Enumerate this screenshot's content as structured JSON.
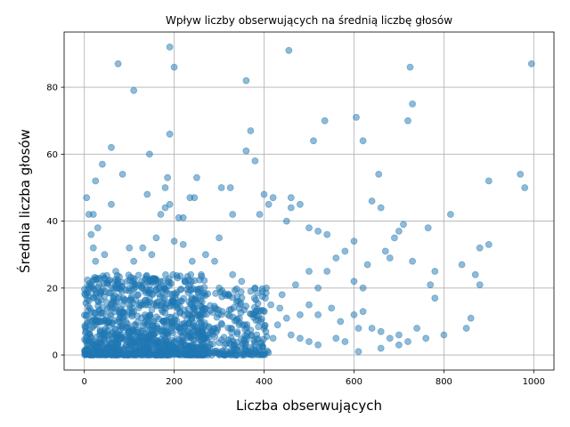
{
  "chart_data": {
    "type": "scatter",
    "title": "Wpływ liczby obserwujących na średnią liczbę głosów",
    "xlabel": "Liczba obserwujących",
    "ylabel": "Średnia liczba głosów",
    "xlim": [
      -45,
      1045
    ],
    "ylim": [
      -4.5,
      96.5
    ],
    "xticks": [
      0,
      200,
      400,
      600,
      800,
      1000
    ],
    "yticks": [
      0,
      20,
      40,
      60,
      80
    ],
    "grid": true,
    "point_color": "#1f77b4",
    "point_alpha": 0.5,
    "series": [
      {
        "points": [
          [
            75,
            87
          ],
          [
            190,
            92
          ],
          [
            200,
            86
          ],
          [
            110,
            79
          ],
          [
            455,
            91
          ],
          [
            360,
            82
          ],
          [
            725,
            86
          ],
          [
            995,
            87
          ],
          [
            730,
            75
          ],
          [
            190,
            66
          ],
          [
            535,
            70
          ],
          [
            605,
            71
          ],
          [
            620,
            64
          ],
          [
            370,
            67
          ],
          [
            60,
            62
          ],
          [
            145,
            60
          ],
          [
            360,
            61
          ],
          [
            380,
            58
          ],
          [
            40,
            57
          ],
          [
            655,
            54
          ],
          [
            970,
            54
          ],
          [
            980,
            50
          ],
          [
            900,
            52
          ],
          [
            85,
            54
          ],
          [
            25,
            52
          ],
          [
            185,
            53
          ],
          [
            250,
            53
          ],
          [
            180,
            50
          ],
          [
            305,
            50
          ],
          [
            325,
            50
          ],
          [
            510,
            64
          ],
          [
            720,
            70
          ],
          [
            5,
            47
          ],
          [
            60,
            45
          ],
          [
            140,
            48
          ],
          [
            180,
            44
          ],
          [
            190,
            45
          ],
          [
            235,
            47
          ],
          [
            245,
            47
          ],
          [
            400,
            48
          ],
          [
            420,
            47
          ],
          [
            460,
            47
          ],
          [
            480,
            45
          ],
          [
            410,
            45
          ],
          [
            460,
            44
          ],
          [
            330,
            42
          ],
          [
            390,
            42
          ],
          [
            450,
            40
          ],
          [
            220,
            41
          ],
          [
            20,
            42
          ],
          [
            10,
            42
          ],
          [
            30,
            38
          ],
          [
            170,
            42
          ],
          [
            210,
            41
          ],
          [
            500,
            38
          ],
          [
            520,
            37
          ],
          [
            540,
            36
          ],
          [
            600,
            34
          ],
          [
            580,
            31
          ],
          [
            640,
            46
          ],
          [
            660,
            44
          ],
          [
            690,
            35
          ],
          [
            700,
            37
          ],
          [
            710,
            39
          ],
          [
            765,
            38
          ],
          [
            815,
            42
          ],
          [
            900,
            33
          ],
          [
            880,
            32
          ],
          [
            840,
            27
          ],
          [
            870,
            24
          ],
          [
            880,
            21
          ],
          [
            860,
            11
          ],
          [
            850,
            8
          ],
          [
            780,
            25
          ],
          [
            770,
            21
          ],
          [
            780,
            17
          ],
          [
            730,
            28
          ],
          [
            670,
            31
          ],
          [
            680,
            29
          ],
          [
            600,
            22
          ],
          [
            620,
            20
          ],
          [
            630,
            27
          ],
          [
            560,
            29
          ],
          [
            540,
            25
          ],
          [
            500,
            25
          ],
          [
            520,
            20
          ],
          [
            470,
            21
          ],
          [
            440,
            18
          ],
          [
            380,
            20
          ],
          [
            350,
            22
          ],
          [
            320,
            18
          ],
          [
            290,
            28
          ],
          [
            300,
            35
          ],
          [
            270,
            30
          ],
          [
            15,
            36
          ],
          [
            20,
            32
          ],
          [
            25,
            28
          ],
          [
            45,
            30
          ],
          [
            70,
            25
          ],
          [
            100,
            32
          ],
          [
            110,
            28
          ],
          [
            130,
            32
          ],
          [
            150,
            30
          ],
          [
            160,
            35
          ],
          [
            200,
            34
          ],
          [
            220,
            33
          ],
          [
            240,
            28
          ],
          [
            260,
            24
          ],
          [
            300,
            20
          ],
          [
            330,
            24
          ],
          [
            405,
            20
          ],
          [
            415,
            15
          ],
          [
            435,
            14
          ],
          [
            480,
            12
          ],
          [
            500,
            15
          ],
          [
            520,
            12
          ],
          [
            550,
            14
          ],
          [
            570,
            10
          ],
          [
            600,
            12
          ],
          [
            620,
            13
          ],
          [
            640,
            8
          ],
          [
            660,
            7
          ],
          [
            680,
            5
          ],
          [
            700,
            6
          ],
          [
            720,
            4
          ],
          [
            740,
            8
          ],
          [
            760,
            5
          ],
          [
            800,
            6
          ],
          [
            520,
            3
          ],
          [
            480,
            5
          ],
          [
            460,
            6
          ],
          [
            420,
            5
          ],
          [
            400,
            8
          ],
          [
            380,
            3
          ],
          [
            370,
            1
          ],
          [
            610,
            1
          ],
          [
            660,
            2
          ],
          [
            700,
            3
          ],
          [
            500,
            4
          ],
          [
            560,
            5
          ],
          [
            580,
            4
          ],
          [
            610,
            8
          ],
          [
            450,
            11
          ],
          [
            430,
            9
          ]
        ]
      }
    ]
  }
}
